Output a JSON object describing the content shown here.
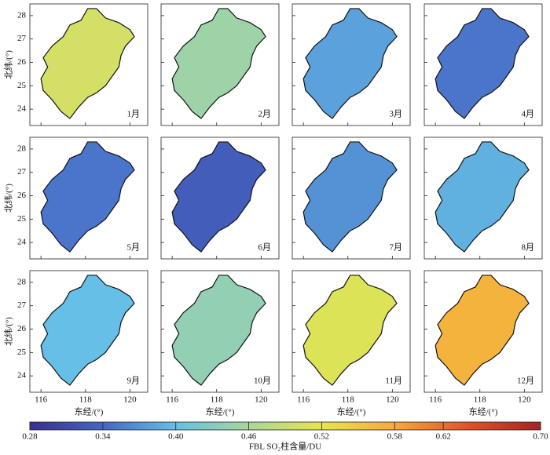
{
  "chart_data": {
    "type": "map",
    "xlabel": "东经/(°)",
    "ylabel": "北纬/(°)",
    "xlim": [
      115.5,
      120.8
    ],
    "ylim": [
      23.3,
      28.5
    ],
    "xticks": [
      116,
      118,
      120
    ],
    "yticks": [
      24,
      25,
      26,
      27,
      28
    ],
    "panels": [
      {
        "label": "1月",
        "value": 0.5
      },
      {
        "label": "2月",
        "value": 0.45
      },
      {
        "label": "3月",
        "value": 0.38
      },
      {
        "label": "4月",
        "value": 0.35
      },
      {
        "label": "5月",
        "value": 0.35
      },
      {
        "label": "6月",
        "value": 0.33
      },
      {
        "label": "7月",
        "value": 0.37
      },
      {
        "label": "8月",
        "value": 0.39
      },
      {
        "label": "9月",
        "value": 0.4
      },
      {
        "label": "10月",
        "value": 0.44
      },
      {
        "label": "11月",
        "value": 0.51
      },
      {
        "label": "12月",
        "value": 0.57
      }
    ],
    "colorbar": {
      "label": "FBL SO₂柱含量/DU",
      "lim": [
        0.28,
        0.7
      ],
      "ticks": [
        0.28,
        0.34,
        {
          "value": 0.4,
          "label": "0.40"
        },
        0.46,
        0.52,
        0.58,
        0.62,
        {
          "value": 0.7,
          "label": "0.70"
        }
      ],
      "colors": [
        "#3b2f8f",
        "#4466c4",
        "#66bfe6",
        "#a8d79a",
        "#e8e54a",
        "#f6a93a",
        "#e5502a",
        "#a5231f"
      ]
    }
  }
}
